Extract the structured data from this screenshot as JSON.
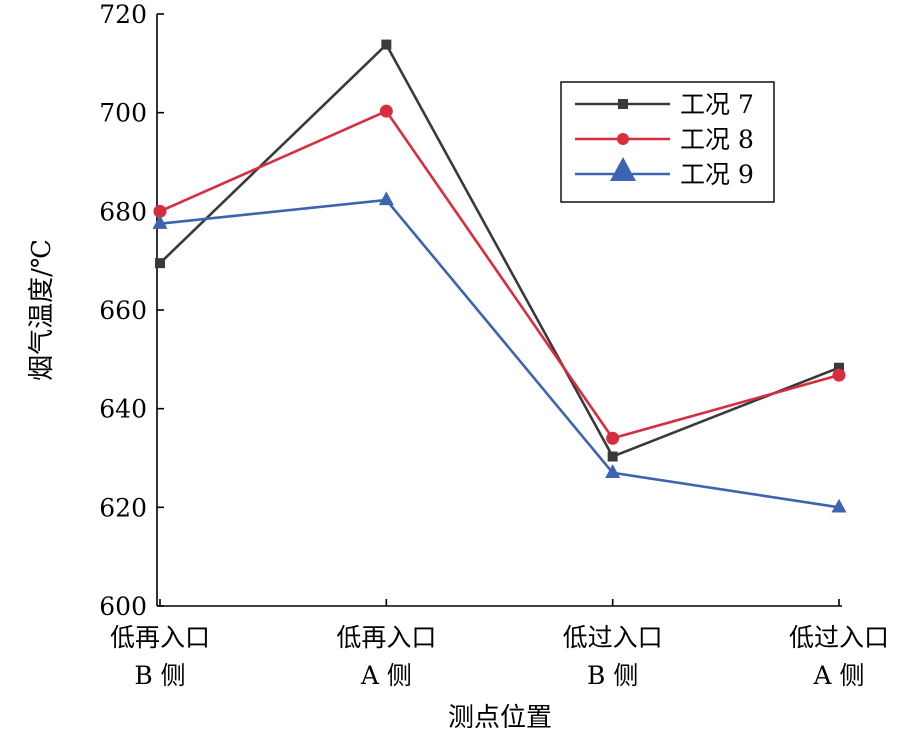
{
  "chart_data": {
    "type": "line",
    "categories": [
      [
        "低再入口",
        "B 侧"
      ],
      [
        "低再入口",
        "A 侧"
      ],
      [
        "低过入口",
        "B 侧"
      ],
      [
        "低过入口",
        "A 侧"
      ]
    ],
    "series": [
      {
        "name": "工况 7",
        "values": [
          669.5,
          713.8,
          630.3,
          648.3
        ],
        "color": "#3a3a3a",
        "marker": "square"
      },
      {
        "name": "工况 8",
        "values": [
          680.0,
          700.3,
          634.0,
          646.8
        ],
        "color": "#d62e3f",
        "marker": "circle"
      },
      {
        "name": "工况 9",
        "values": [
          677.5,
          682.3,
          627.0,
          620.0
        ],
        "color": "#3c64b1",
        "marker": "triangle"
      }
    ],
    "xlabel": "测点位置",
    "ylabel": "烟气温度/℃",
    "ylim": [
      600,
      720
    ],
    "yticks": [
      600,
      620,
      640,
      660,
      680,
      700,
      720
    ],
    "grid": false,
    "legend": "top-right"
  }
}
